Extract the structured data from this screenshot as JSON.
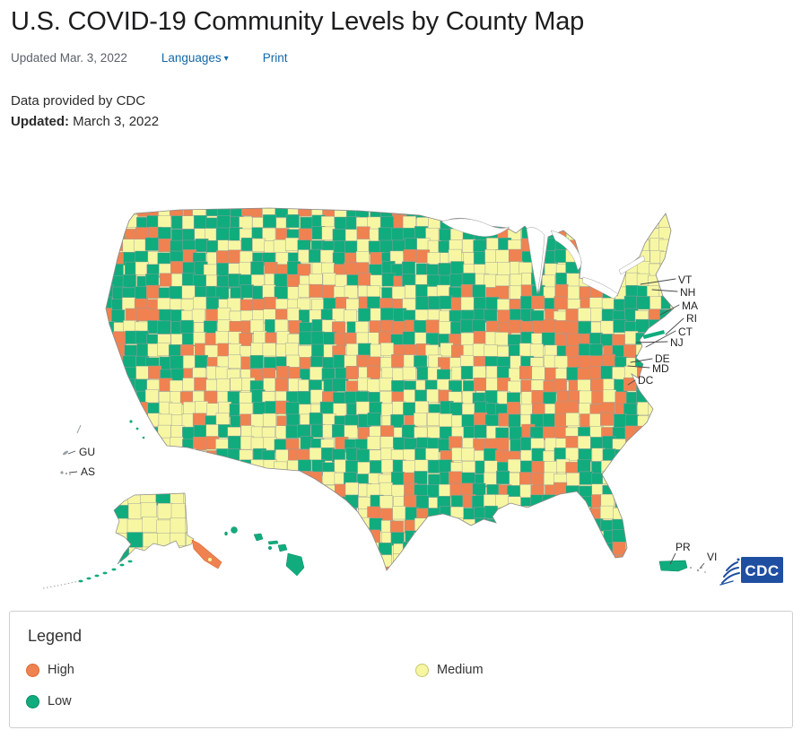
{
  "page": {
    "title": "U.S. COVID-19 Community Levels by County Map",
    "meta": {
      "updated_short": "Updated Mar. 3, 2022",
      "languages_label": "Languages",
      "caret": "▾",
      "print_label": "Print"
    },
    "info": {
      "source": "Data provided by CDC",
      "updated_label": "Updated:",
      "updated_date": "March 3, 2022"
    }
  },
  "map": {
    "labels": [
      {
        "id": "VT",
        "text": "VT"
      },
      {
        "id": "NH",
        "text": "NH"
      },
      {
        "id": "MA",
        "text": "MA"
      },
      {
        "id": "RI",
        "text": "RI"
      },
      {
        "id": "CT",
        "text": "CT"
      },
      {
        "id": "NJ",
        "text": "NJ"
      },
      {
        "id": "DE",
        "text": "DE"
      },
      {
        "id": "MD",
        "text": "MD"
      },
      {
        "id": "DC",
        "text": "DC"
      },
      {
        "id": "GU",
        "text": "GU"
      },
      {
        "id": "AS",
        "text": "AS"
      },
      {
        "id": "PR",
        "text": "PR"
      },
      {
        "id": "VI",
        "text": "VI"
      }
    ],
    "logo": {
      "cdc": "CDC"
    },
    "colors": {
      "high": "#EF8250",
      "high_border": "#DB6A33",
      "medium": "#F7F7A3",
      "medium_border": "#C6C66F",
      "low": "#10AC7D",
      "low_border": "#0B8A62",
      "county_border": "#9C9C9C",
      "coast_border": "#8A8A8A",
      "territory_gray": "#9AA0A6",
      "cdc_blue": "#1E4FA1",
      "link_blue": "#1268A9"
    }
  },
  "legend": {
    "title": "Legend",
    "items": [
      {
        "label": "High",
        "level": "high"
      },
      {
        "label": "Medium",
        "level": "medium"
      },
      {
        "label": "Low",
        "level": "low"
      }
    ]
  }
}
